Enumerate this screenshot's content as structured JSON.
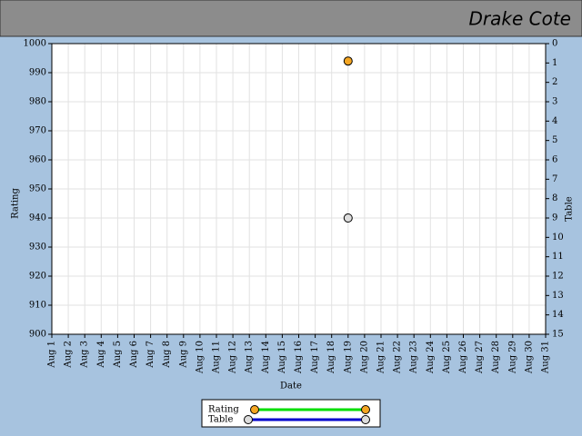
{
  "chart_data": {
    "type": "scatter",
    "title": "Drake Cote",
    "x_label": "Date",
    "y_label": "Rating",
    "y2_label": "Table",
    "categories": [
      "Aug 1",
      "Aug 2",
      "Aug 3",
      "Aug 4",
      "Aug 5",
      "Aug 6",
      "Aug 7",
      "Aug 8",
      "Aug 9",
      "Aug 10",
      "Aug 11",
      "Aug 12",
      "Aug 13",
      "Aug 14",
      "Aug 15",
      "Aug 16",
      "Aug 17",
      "Aug 18",
      "Aug 19",
      "Aug 20",
      "Aug 21",
      "Aug 22",
      "Aug 23",
      "Aug 24",
      "Aug 25",
      "Aug 26",
      "Aug 27",
      "Aug 28",
      "Aug 29",
      "Aug 30",
      "Aug 31"
    ],
    "series": [
      {
        "name": "Rating",
        "color": "#00dd00",
        "marker_color": "#f5a623",
        "values": [
          null,
          null,
          null,
          null,
          null,
          null,
          null,
          null,
          null,
          null,
          null,
          null,
          null,
          null,
          null,
          null,
          null,
          null,
          994,
          null,
          null,
          null,
          null,
          null,
          null,
          null,
          null,
          null,
          null,
          null,
          null
        ]
      },
      {
        "name": "Table",
        "axis": "y2",
        "color": "#0000cc",
        "marker_color": "#dddddd",
        "values": [
          null,
          null,
          null,
          null,
          null,
          null,
          null,
          null,
          null,
          null,
          null,
          null,
          null,
          null,
          null,
          null,
          null,
          null,
          9,
          null,
          null,
          null,
          null,
          null,
          null,
          null,
          null,
          null,
          null,
          null,
          null
        ]
      }
    ],
    "ylim": [
      900,
      1000
    ],
    "yticks": [
      900,
      910,
      920,
      930,
      940,
      950,
      960,
      970,
      980,
      990,
      1000
    ],
    "y2lim": [
      15,
      0
    ],
    "y2ticks": [
      0,
      1,
      2,
      3,
      4,
      5,
      6,
      7,
      8,
      9,
      10,
      11,
      12,
      13,
      14,
      15
    ],
    "grid": true
  }
}
